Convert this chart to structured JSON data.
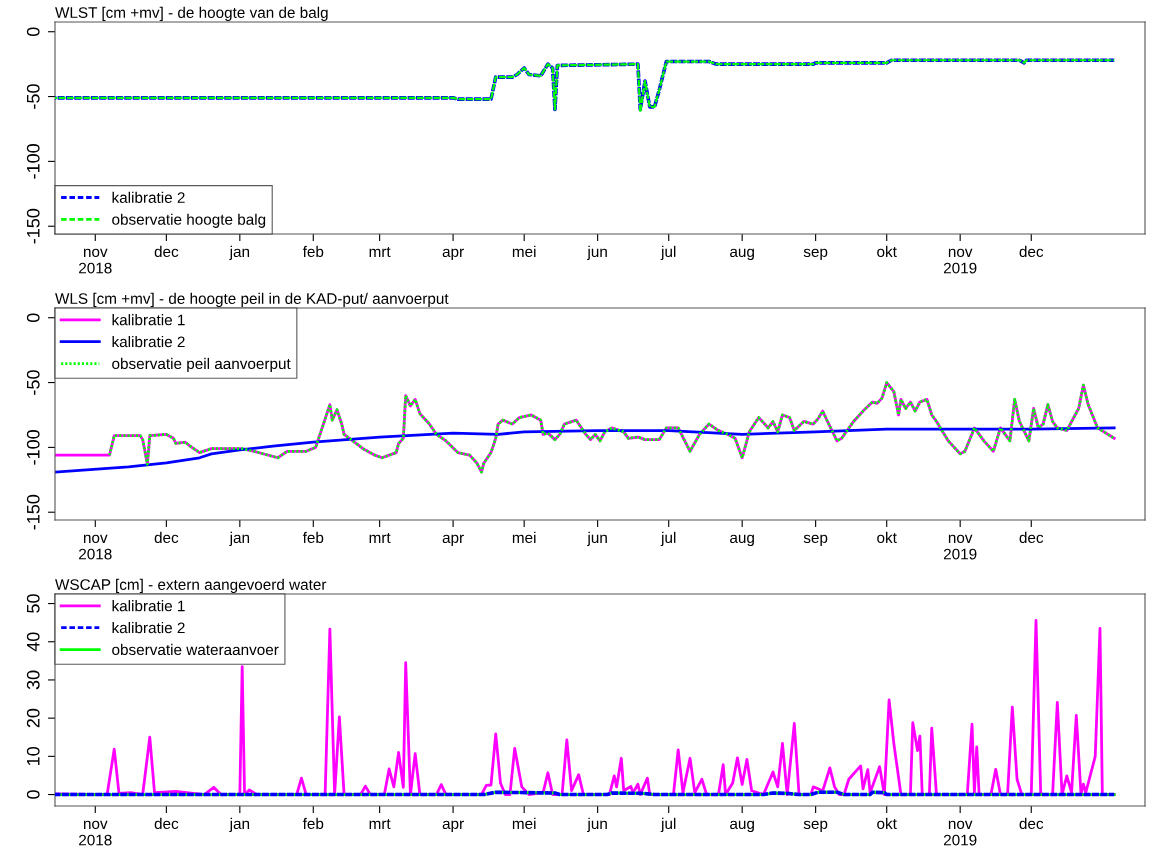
{
  "chart_data": [
    {
      "type": "line",
      "title": "WLST [cm +mv] - de hoogte van de balg",
      "legend": "bottom left",
      "xlim": [
        "2018-10-15",
        "2020-01-18"
      ],
      "ylim": [
        -156,
        7.5
      ],
      "yticks": [
        0,
        -50,
        -100,
        -150
      ],
      "xticks": [
        {
          "value": "2018-11-01",
          "label": "nov\n2018"
        },
        {
          "value": "2018-12-01",
          "label": "dec"
        },
        {
          "value": "2019-01-01",
          "label": "jan"
        },
        {
          "value": "2019-02-01",
          "label": "feb"
        },
        {
          "value": "2019-03-01",
          "label": "mrt"
        },
        {
          "value": "2019-04-01",
          "label": "apr"
        },
        {
          "value": "2019-05-01",
          "label": "mei"
        },
        {
          "value": "2019-06-01",
          "label": "jun"
        },
        {
          "value": "2019-07-01",
          "label": "jul"
        },
        {
          "value": "2019-08-01",
          "label": "aug"
        },
        {
          "value": "2019-09-01",
          "label": "sep"
        },
        {
          "value": "2019-10-01",
          "label": "okt"
        },
        {
          "value": "2019-11-01",
          "label": "nov\n2019"
        },
        {
          "value": "2019-12-01",
          "label": "dec"
        }
      ],
      "series": [
        {
          "name": "kalibratie 2",
          "color": "#0000ff",
          "line_style": "dashed",
          "x": [
            "2018-10-15",
            "2019-04-01",
            "2019-04-03",
            "2019-04-17",
            "2019-04-19",
            "2019-04-26",
            "2019-04-28",
            "2019-05-01",
            "2019-05-03",
            "2019-05-08",
            "2019-05-11",
            "2019-05-13",
            "2019-05-14",
            "2019-05-15",
            "2019-06-18",
            "2019-06-19",
            "2019-06-21",
            "2019-06-23",
            "2019-06-25",
            "2019-06-27",
            "2019-06-30",
            "2019-07-18",
            "2019-07-21",
            "2019-08-31",
            "2019-09-01",
            "2019-10-01",
            "2019-10-03",
            "2019-11-26",
            "2019-11-28",
            "2019-11-29",
            "2020-01-05"
          ],
          "values": [
            -51,
            -51,
            -52,
            -52,
            -35,
            -35,
            -33,
            -28,
            -33,
            -34,
            -25,
            -28,
            -60,
            -26,
            -25,
            -60,
            -38,
            -58,
            -58,
            -45,
            -23,
            -23,
            -25,
            -25,
            -24,
            -24,
            -22,
            -22,
            -24,
            -22,
            -22
          ]
        },
        {
          "name": "observatie hoogte balg",
          "color": "#00ff00",
          "line_style": "dashed",
          "x": [
            "2018-10-15",
            "2019-04-01",
            "2019-04-03",
            "2019-04-17",
            "2019-04-19",
            "2019-04-26",
            "2019-04-28",
            "2019-05-01",
            "2019-05-03",
            "2019-05-08",
            "2019-05-11",
            "2019-05-13",
            "2019-05-14",
            "2019-05-15",
            "2019-06-18",
            "2019-06-19",
            "2019-06-21",
            "2019-06-23",
            "2019-06-25",
            "2019-06-27",
            "2019-06-30",
            "2019-07-18",
            "2019-07-21",
            "2019-08-31",
            "2019-09-01",
            "2019-10-01",
            "2019-10-03",
            "2019-11-26",
            "2019-11-28",
            "2019-11-29",
            "2020-01-05"
          ],
          "values": [
            -51,
            -51,
            -52,
            -52,
            -35,
            -35,
            -33,
            -28,
            -33,
            -34,
            -25,
            -28,
            -60,
            -26,
            -25,
            -62,
            -38,
            -58,
            -58,
            -45,
            -23,
            -23,
            -25,
            -25,
            -24,
            -24,
            -22,
            -22,
            -24,
            -22,
            -22
          ]
        }
      ]
    },
    {
      "type": "line",
      "title": "WLS [cm +mv] - de hoogte peil in de KAD-put/ aanvoerput",
      "legend": "top left",
      "xlim": [
        "2018-10-15",
        "2020-01-18"
      ],
      "ylim": [
        -156,
        7.5
      ],
      "yticks": [
        0,
        -50,
        -100,
        -150
      ],
      "xticks": [
        {
          "value": "2018-11-01",
          "label": "nov\n2018"
        },
        {
          "value": "2018-12-01",
          "label": "dec"
        },
        {
          "value": "2019-01-01",
          "label": "jan"
        },
        {
          "value": "2019-02-01",
          "label": "feb"
        },
        {
          "value": "2019-03-01",
          "label": "mrt"
        },
        {
          "value": "2019-04-01",
          "label": "apr"
        },
        {
          "value": "2019-05-01",
          "label": "mei"
        },
        {
          "value": "2019-06-01",
          "label": "jun"
        },
        {
          "value": "2019-07-01",
          "label": "jul"
        },
        {
          "value": "2019-08-01",
          "label": "aug"
        },
        {
          "value": "2019-09-01",
          "label": "sep"
        },
        {
          "value": "2019-10-01",
          "label": "okt"
        },
        {
          "value": "2019-11-01",
          "label": "nov\n2019"
        },
        {
          "value": "2019-12-01",
          "label": "dec"
        }
      ],
      "series": [
        {
          "name": "kalibratie 1",
          "color": "#ff00ff",
          "line_style": "solid",
          "x": [
            "2018-10-15",
            "2018-11-05",
            "2018-11-07",
            "2018-11-09",
            "2018-11-20",
            "2018-11-21",
            "2018-11-23",
            "2018-11-24",
            "2018-12-01",
            "2018-12-04",
            "2018-12-05",
            "2018-12-09",
            "2018-12-11",
            "2018-12-15",
            "2018-12-20",
            "2019-01-02",
            "2019-01-07",
            "2019-01-17",
            "2019-01-21",
            "2019-01-29",
            "2019-02-02",
            "2019-02-08",
            "2019-02-09",
            "2019-02-11",
            "2019-02-13",
            "2019-02-14",
            "2019-02-17",
            "2019-02-22",
            "2019-02-27",
            "2019-03-02",
            "2019-03-08",
            "2019-03-09",
            "2019-03-11",
            "2019-03-12",
            "2019-03-14",
            "2019-03-16",
            "2019-03-18",
            "2019-03-22",
            "2019-03-25",
            "2019-03-29",
            "2019-04-03",
            "2019-04-08",
            "2019-04-11",
            "2019-04-13",
            "2019-04-14",
            "2019-04-17",
            "2019-04-19",
            "2019-04-20",
            "2019-04-22",
            "2019-04-26",
            "2019-04-29",
            "2019-05-04",
            "2019-05-08",
            "2019-05-09",
            "2019-05-11",
            "2019-05-14",
            "2019-05-16",
            "2019-05-18",
            "2019-05-23",
            "2019-05-27",
            "2019-05-29",
            "2019-05-31",
            "2019-06-02",
            "2019-06-04",
            "2019-06-07",
            "2019-06-12",
            "2019-06-14",
            "2019-06-18",
            "2019-06-21",
            "2019-06-27",
            "2019-06-30",
            "2019-07-05",
            "2019-07-10",
            "2019-07-14",
            "2019-07-18",
            "2019-07-22",
            "2019-07-26",
            "2019-07-29",
            "2019-08-01",
            "2019-08-04",
            "2019-08-08",
            "2019-08-12",
            "2019-08-14",
            "2019-08-16",
            "2019-08-18",
            "2019-08-21",
            "2019-08-23",
            "2019-08-27",
            "2019-08-31",
            "2019-09-02",
            "2019-09-04",
            "2019-09-06",
            "2019-09-10",
            "2019-09-12",
            "2019-09-17",
            "2019-09-21",
            "2019-09-25",
            "2019-09-27",
            "2019-09-29",
            "2019-10-01",
            "2019-10-04",
            "2019-10-06",
            "2019-10-07",
            "2019-10-09",
            "2019-10-11",
            "2019-10-13",
            "2019-10-15",
            "2019-10-18",
            "2019-10-20",
            "2019-10-22",
            "2019-10-27",
            "2019-11-01",
            "2019-11-03",
            "2019-11-07",
            "2019-11-11",
            "2019-11-15",
            "2019-11-18",
            "2019-11-20",
            "2019-11-22",
            "2019-11-24",
            "2019-11-26",
            "2019-11-30",
            "2019-12-02",
            "2019-12-04",
            "2019-12-06",
            "2019-12-08",
            "2019-12-10",
            "2019-12-12",
            "2019-12-16",
            "2019-12-21",
            "2019-12-23",
            "2019-12-25",
            "2019-12-29",
            "2020-01-05"
          ],
          "values": [
            -106,
            -106,
            -106,
            -91,
            -91,
            -94,
            -113,
            -91,
            -90,
            -93,
            -97,
            -96,
            -99,
            -104,
            -101,
            -101,
            -103,
            -108,
            -103,
            -103,
            -100,
            -67,
            -79,
            -71,
            -82,
            -90,
            -94,
            -101,
            -106,
            -108,
            -104,
            -97,
            -93,
            -60,
            -68,
            -63,
            -74,
            -82,
            -90,
            -95,
            -104,
            -106,
            -112,
            -119,
            -112,
            -104,
            -93,
            -82,
            -79,
            -82,
            -77,
            -75,
            -79,
            -90,
            -89,
            -94,
            -90,
            -82,
            -79,
            -90,
            -94,
            -90,
            -95,
            -88,
            -85,
            -88,
            -93,
            -92,
            -94,
            -94,
            -85,
            -85,
            -103,
            -90,
            -82,
            -87,
            -90,
            -93,
            -108,
            -88,
            -77,
            -85,
            -80,
            -88,
            -75,
            -77,
            -87,
            -80,
            -82,
            -78,
            -72,
            -80,
            -95,
            -93,
            -80,
            -72,
            -65,
            -66,
            -62,
            -50,
            -57,
            -75,
            -63,
            -70,
            -65,
            -72,
            -65,
            -63,
            -75,
            -80,
            -95,
            -105,
            -103,
            -85,
            -95,
            -103,
            -85,
            -90,
            -95,
            -63,
            -80,
            -95,
            -70,
            -85,
            -82,
            -67,
            -80,
            -85,
            -87,
            -70,
            -52,
            -67,
            -85,
            -93
          ]
        },
        {
          "name": "kalibratie 2",
          "color": "#0000ff",
          "line_style": "solid",
          "x": [
            "2018-10-15",
            "2018-11-15",
            "2018-12-01",
            "2018-12-15",
            "2018-12-20",
            "2019-01-01",
            "2019-01-15",
            "2019-02-01",
            "2019-03-01",
            "2019-04-01",
            "2019-04-20",
            "2019-05-01",
            "2019-06-01",
            "2019-07-01",
            "2019-08-01",
            "2019-09-01",
            "2019-10-01",
            "2019-11-01",
            "2019-12-01",
            "2020-01-05"
          ],
          "values": [
            -119,
            -115,
            -112,
            -108,
            -105,
            -102,
            -99,
            -96,
            -92,
            -89,
            -90,
            -88,
            -87,
            -87,
            -90,
            -88,
            -86,
            -86,
            -86,
            -85
          ]
        },
        {
          "name": "observatie peil aanvoerput",
          "color": "#00ff00",
          "line_style": "dotted",
          "x": [
            "2018-11-07",
            "2018-11-09",
            "2018-11-20",
            "2018-11-21",
            "2018-11-23",
            "2018-11-24",
            "2018-12-01",
            "2018-12-04",
            "2018-12-05",
            "2018-12-09",
            "2018-12-11",
            "2018-12-15",
            "2018-12-20",
            "2019-01-02",
            "2019-01-07",
            "2019-01-17",
            "2019-01-21",
            "2019-01-29",
            "2019-02-02",
            "2019-02-08",
            "2019-02-09",
            "2019-02-11",
            "2019-02-13",
            "2019-02-14",
            "2019-02-17",
            "2019-02-22",
            "2019-02-27",
            "2019-03-02",
            "2019-03-08",
            "2019-03-09",
            "2019-03-11",
            "2019-03-12",
            "2019-03-14",
            "2019-03-16",
            "2019-03-18",
            "2019-03-22",
            "2019-03-25",
            "2019-03-29",
            "2019-04-03",
            "2019-04-08",
            "2019-04-11",
            "2019-04-13",
            "2019-04-14",
            "2019-04-17",
            "2019-04-19",
            "2019-04-20",
            "2019-04-22",
            "2019-04-26",
            "2019-04-29",
            "2019-05-04",
            "2019-05-08",
            "2019-05-09",
            "2019-05-11",
            "2019-05-14",
            "2019-05-16",
            "2019-05-18",
            "2019-05-23",
            "2019-05-27",
            "2019-05-29",
            "2019-05-31",
            "2019-06-02",
            "2019-06-04",
            "2019-06-07",
            "2019-06-12",
            "2019-06-14",
            "2019-06-18",
            "2019-06-21",
            "2019-06-27",
            "2019-06-30",
            "2019-07-05",
            "2019-07-10",
            "2019-07-14",
            "2019-07-18",
            "2019-07-22",
            "2019-07-26",
            "2019-07-29",
            "2019-08-01",
            "2019-08-04",
            "2019-08-08",
            "2019-08-12",
            "2019-08-14",
            "2019-08-16",
            "2019-08-18",
            "2019-08-21",
            "2019-08-23",
            "2019-08-27",
            "2019-08-31",
            "2019-09-02",
            "2019-09-04",
            "2019-09-06",
            "2019-09-10",
            "2019-09-12",
            "2019-09-17",
            "2019-09-21",
            "2019-09-25",
            "2019-09-27",
            "2019-09-29",
            "2019-10-01",
            "2019-10-04",
            "2019-10-06",
            "2019-10-07",
            "2019-10-09",
            "2019-10-11",
            "2019-10-13",
            "2019-10-15",
            "2019-10-18",
            "2019-10-20",
            "2019-10-22",
            "2019-10-27",
            "2019-11-01",
            "2019-11-03",
            "2019-11-07",
            "2019-11-11",
            "2019-11-15",
            "2019-11-18",
            "2019-11-20",
            "2019-11-22",
            "2019-11-24",
            "2019-11-26",
            "2019-11-30",
            "2019-12-02",
            "2019-12-04",
            "2019-12-06",
            "2019-12-08",
            "2019-12-10",
            "2019-12-12",
            "2019-12-16",
            "2019-12-21",
            "2019-12-23",
            "2019-12-25",
            "2019-12-29",
            "2020-01-05"
          ],
          "values": [
            -106,
            -91,
            -91,
            -94,
            -113,
            -91,
            -90,
            -93,
            -97,
            -96,
            -99,
            -104,
            -101,
            -101,
            -103,
            -108,
            -103,
            -103,
            -100,
            -67,
            -79,
            -71,
            -82,
            -90,
            -94,
            -101,
            -106,
            -108,
            -104,
            -97,
            -93,
            -60,
            -68,
            -63,
            -74,
            -82,
            -90,
            -95,
            -104,
            -106,
            -112,
            -119,
            -112,
            -104,
            -93,
            -82,
            -79,
            -82,
            -77,
            -75,
            -79,
            -90,
            -89,
            -94,
            -90,
            -82,
            -79,
            -90,
            -94,
            -90,
            -95,
            -88,
            -85,
            -88,
            -93,
            -92,
            -94,
            -94,
            -85,
            -85,
            -103,
            -90,
            -82,
            -87,
            -90,
            -93,
            -108,
            -88,
            -77,
            -85,
            -80,
            -88,
            -75,
            -77,
            -87,
            -80,
            -82,
            -78,
            -72,
            -80,
            -95,
            -93,
            -80,
            -72,
            -65,
            -66,
            -62,
            -50,
            -57,
            -75,
            -63,
            -70,
            -65,
            -72,
            -65,
            -63,
            -75,
            -80,
            -95,
            -105,
            -103,
            -85,
            -95,
            -103,
            -85,
            -90,
            -95,
            -63,
            -80,
            -95,
            -70,
            -85,
            -82,
            -67,
            -80,
            -85,
            -87,
            -70,
            -52,
            -67,
            -85,
            -93
          ]
        }
      ]
    },
    {
      "type": "line",
      "title": "WSCAP [cm] - extern aangevoerd water",
      "legend": "top left",
      "xlim": [
        "2018-10-15",
        "2020-01-18"
      ],
      "ylim": [
        -3,
        52.5
      ],
      "yticks": [
        0,
        10,
        20,
        30,
        40,
        50
      ],
      "xticks": [
        {
          "value": "2018-11-01",
          "label": "nov\n2018"
        },
        {
          "value": "2018-12-01",
          "label": "dec"
        },
        {
          "value": "2019-01-01",
          "label": "jan"
        },
        {
          "value": "2019-02-01",
          "label": "feb"
        },
        {
          "value": "2019-03-01",
          "label": "mrt"
        },
        {
          "value": "2019-04-01",
          "label": "apr"
        },
        {
          "value": "2019-05-01",
          "label": "mei"
        },
        {
          "value": "2019-06-01",
          "label": "jun"
        },
        {
          "value": "2019-07-01",
          "label": "jul"
        },
        {
          "value": "2019-08-01",
          "label": "aug"
        },
        {
          "value": "2019-09-01",
          "label": "sep"
        },
        {
          "value": "2019-10-01",
          "label": "okt"
        },
        {
          "value": "2019-11-01",
          "label": "nov\n2019"
        },
        {
          "value": "2019-12-01",
          "label": "dec"
        }
      ],
      "series": [
        {
          "name": "kalibratie 1",
          "color": "#ff00ff",
          "line_style": "solid",
          "x": [
            "2018-10-15",
            "2018-11-06",
            "2018-11-09",
            "2018-11-11",
            "2018-11-16",
            "2018-11-21",
            "2018-11-24",
            "2018-11-26",
            "2018-12-05",
            "2018-12-17",
            "2018-12-21",
            "2018-12-24",
            "2019-01-01",
            "2019-01-02",
            "2019-01-03",
            "2019-01-05",
            "2019-01-08",
            "2019-01-25",
            "2019-01-27",
            "2019-01-29",
            "2019-02-06",
            "2019-02-08",
            "2019-02-10",
            "2019-02-12",
            "2019-02-14",
            "2019-02-21",
            "2019-02-23",
            "2019-02-25",
            "2019-03-03",
            "2019-03-05",
            "2019-03-07",
            "2019-03-09",
            "2019-03-11",
            "2019-03-12",
            "2019-03-14",
            "2019-03-16",
            "2019-03-18",
            "2019-03-25",
            "2019-03-27",
            "2019-03-29",
            "2019-04-13",
            "2019-04-15",
            "2019-04-17",
            "2019-04-19",
            "2019-04-21",
            "2019-04-23",
            "2019-04-25",
            "2019-04-27",
            "2019-04-30",
            "2019-05-03",
            "2019-05-09",
            "2019-05-11",
            "2019-05-13",
            "2019-05-17",
            "2019-05-19",
            "2019-05-21",
            "2019-05-24",
            "2019-05-26",
            "2019-06-06",
            "2019-06-08",
            "2019-06-09",
            "2019-06-11",
            "2019-06-12",
            "2019-06-15",
            "2019-06-16",
            "2019-06-18",
            "2019-06-19",
            "2019-06-22",
            "2019-06-23",
            "2019-07-03",
            "2019-07-05",
            "2019-07-07",
            "2019-07-10",
            "2019-07-12",
            "2019-07-15",
            "2019-07-17",
            "2019-07-22",
            "2019-07-24",
            "2019-07-25",
            "2019-07-28",
            "2019-07-30",
            "2019-08-01",
            "2019-08-03",
            "2019-08-05",
            "2019-08-10",
            "2019-08-14",
            "2019-08-16",
            "2019-08-18",
            "2019-08-20",
            "2019-08-23",
            "2019-08-25",
            "2019-08-30",
            "2019-08-31",
            "2019-09-04",
            "2019-09-07",
            "2019-09-09",
            "2019-09-11",
            "2019-09-13",
            "2019-09-15",
            "2019-09-20",
            "2019-09-21",
            "2019-09-23",
            "2019-09-24",
            "2019-09-28",
            "2019-09-30",
            "2019-10-02",
            "2019-10-04",
            "2019-10-07",
            "2019-10-11",
            "2019-10-12",
            "2019-10-14",
            "2019-10-15",
            "2019-10-16",
            "2019-10-19",
            "2019-10-20",
            "2019-10-22",
            "2019-11-04",
            "2019-11-06",
            "2019-11-07",
            "2019-11-08",
            "2019-11-09",
            "2019-11-14",
            "2019-11-16",
            "2019-11-18",
            "2019-11-21",
            "2019-11-23",
            "2019-11-25",
            "2019-11-27",
            "2019-12-01",
            "2019-12-03",
            "2019-12-05",
            "2019-12-10",
            "2019-12-12",
            "2019-12-14",
            "2019-12-16",
            "2019-12-18",
            "2019-12-20",
            "2019-12-22",
            "2019-12-23",
            "2019-12-24",
            "2019-12-28",
            "2019-12-30",
            "2019-12-31",
            "2020-01-05"
          ],
          "values": [
            0.2,
            0,
            11.9,
            0.3,
            0.5,
            0,
            15,
            0.5,
            0.8,
            0,
            1.9,
            0,
            0,
            33.5,
            0,
            1.2,
            0,
            0,
            4.3,
            0,
            0,
            43.3,
            0,
            20.3,
            0,
            0,
            2.2,
            0,
            0,
            6.7,
            2,
            11,
            1.9,
            34.5,
            0,
            10.7,
            0,
            0,
            2.6,
            0,
            0,
            2.4,
            2.5,
            15.9,
            3,
            0,
            0,
            12.1,
            2,
            0,
            0.5,
            5.7,
            0,
            0,
            14.3,
            1,
            5.2,
            0,
            0,
            4.9,
            2,
            9.5,
            1,
            2.1,
            0.5,
            2.7,
            0,
            4.3,
            0,
            0,
            11.7,
            0.5,
            9.5,
            0.5,
            4,
            0,
            0,
            7.8,
            0,
            3,
            9.6,
            2.6,
            9.2,
            1,
            0,
            5.9,
            2,
            13.4,
            0,
            18.6,
            0,
            0,
            2,
            1,
            7,
            2,
            0,
            0,
            4,
            7.5,
            1.5,
            6.5,
            0.5,
            7.3,
            0,
            24.8,
            13.4,
            0,
            0,
            18.8,
            11.5,
            15.3,
            0,
            0,
            17.4,
            0,
            0,
            18.4,
            0.5,
            12.5,
            0,
            0,
            6.6,
            0,
            0,
            22.9,
            4,
            0,
            0,
            45.6,
            0,
            0,
            24.1,
            0,
            4.9,
            0.5,
            20.7,
            0,
            2.7,
            0.5,
            10,
            43.5,
            0,
            0
          ]
        },
        {
          "name": "kalibratie 2",
          "color": "#0000ff",
          "line_style": "dashed",
          "x": [
            "2018-10-15",
            "2019-04-14",
            "2019-04-19",
            "2019-05-14",
            "2019-05-16",
            "2019-06-05",
            "2019-06-07",
            "2019-06-20",
            "2019-06-25",
            "2019-08-10",
            "2019-08-14",
            "2019-08-20",
            "2019-08-25",
            "2019-08-30",
            "2019-09-02",
            "2019-09-10",
            "2019-09-13",
            "2019-09-24",
            "2019-09-25",
            "2019-09-30",
            "2019-10-01",
            "2020-01-05"
          ],
          "values": [
            0,
            0,
            0.6,
            0.4,
            0,
            0,
            0.4,
            0.3,
            0,
            0,
            0.4,
            0.3,
            0,
            0,
            0.6,
            0.6,
            0,
            0,
            0.6,
            0.5,
            0,
            0
          ]
        },
        {
          "name": "observatie wateraanvoer",
          "color": "#00ff00",
          "line_style": "solid",
          "x": [
            "2018-10-15",
            "2019-04-14",
            "2019-04-19",
            "2019-05-14",
            "2019-05-16",
            "2019-06-05",
            "2019-06-07",
            "2019-06-20",
            "2019-06-25",
            "2019-08-10",
            "2019-08-14",
            "2019-08-20",
            "2019-08-25",
            "2019-08-30",
            "2019-09-02",
            "2019-09-10",
            "2019-09-13",
            "2019-09-24",
            "2019-09-25",
            "2019-09-30",
            "2019-10-01",
            "2020-01-05"
          ],
          "values": [
            0,
            0,
            0.6,
            0.4,
            0,
            0,
            0.4,
            0.3,
            0,
            0,
            0.4,
            0.3,
            0,
            0,
            0.6,
            0.6,
            0,
            0,
            0.6,
            0.5,
            0,
            0
          ]
        }
      ]
    }
  ]
}
